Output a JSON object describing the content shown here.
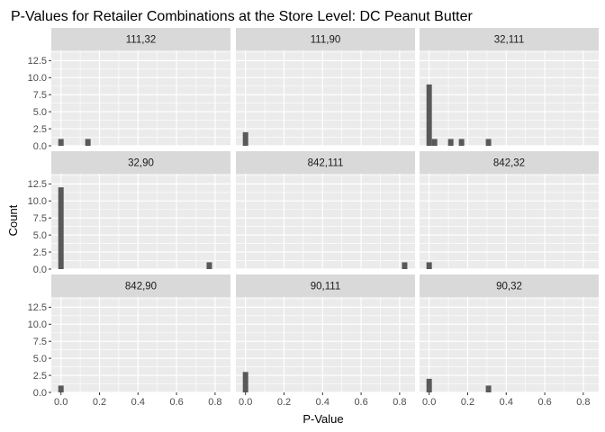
{
  "chart_data": {
    "type": "bar",
    "title": "P-Values for Retailer Combinations at the Store Level: DC Peanut Butter",
    "xlabel": "P-Value",
    "ylabel": "Count",
    "xlim": [
      -0.05,
      0.88
    ],
    "ylim": [
      0,
      14
    ],
    "x_ticks": [
      0.0,
      0.2,
      0.4,
      0.6,
      0.8
    ],
    "x_tick_labels": [
      "0.0",
      "0.2",
      "0.4",
      "0.6",
      "0.8"
    ],
    "y_ticks": [
      0.0,
      2.5,
      5.0,
      7.5,
      10.0,
      12.5
    ],
    "y_tick_labels": [
      "0.0",
      "2.5",
      "5.0",
      "7.5",
      "10.0",
      "12.5"
    ],
    "bin_width": 0.028,
    "grid": true,
    "panels": [
      {
        "label": "111,32",
        "bins": [
          {
            "x": 0.0,
            "count": 1
          },
          {
            "x": 0.14,
            "count": 1
          }
        ]
      },
      {
        "label": "111,90",
        "bins": [
          {
            "x": 0.0,
            "count": 2
          }
        ]
      },
      {
        "label": "32,111",
        "bins": [
          {
            "x": 0.0,
            "count": 9
          },
          {
            "x": 0.028,
            "count": 1
          },
          {
            "x": 0.112,
            "count": 1
          },
          {
            "x": 0.168,
            "count": 1
          },
          {
            "x": 0.308,
            "count": 1
          }
        ]
      },
      {
        "label": "32,90",
        "bins": [
          {
            "x": 0.0,
            "count": 12
          },
          {
            "x": 0.77,
            "count": 1
          }
        ]
      },
      {
        "label": "842,111",
        "bins": [
          {
            "x": 0.826,
            "count": 1
          }
        ]
      },
      {
        "label": "842,32",
        "bins": [
          {
            "x": 0.0,
            "count": 1
          }
        ]
      },
      {
        "label": "842,90",
        "bins": [
          {
            "x": 0.0,
            "count": 1
          }
        ]
      },
      {
        "label": "90,111",
        "bins": [
          {
            "x": 0.0,
            "count": 3
          }
        ]
      },
      {
        "label": "90,32",
        "bins": [
          {
            "x": 0.0,
            "count": 2
          },
          {
            "x": 0.308,
            "count": 1
          }
        ]
      }
    ]
  },
  "colors": {
    "panel_background": "#ebebeb",
    "strip_background": "#d9d9d9",
    "grid_major": "#ffffff",
    "grid_minor": "#f5f5f5",
    "bar_fill": "#595959",
    "tick_text": "#4d4d4d"
  }
}
